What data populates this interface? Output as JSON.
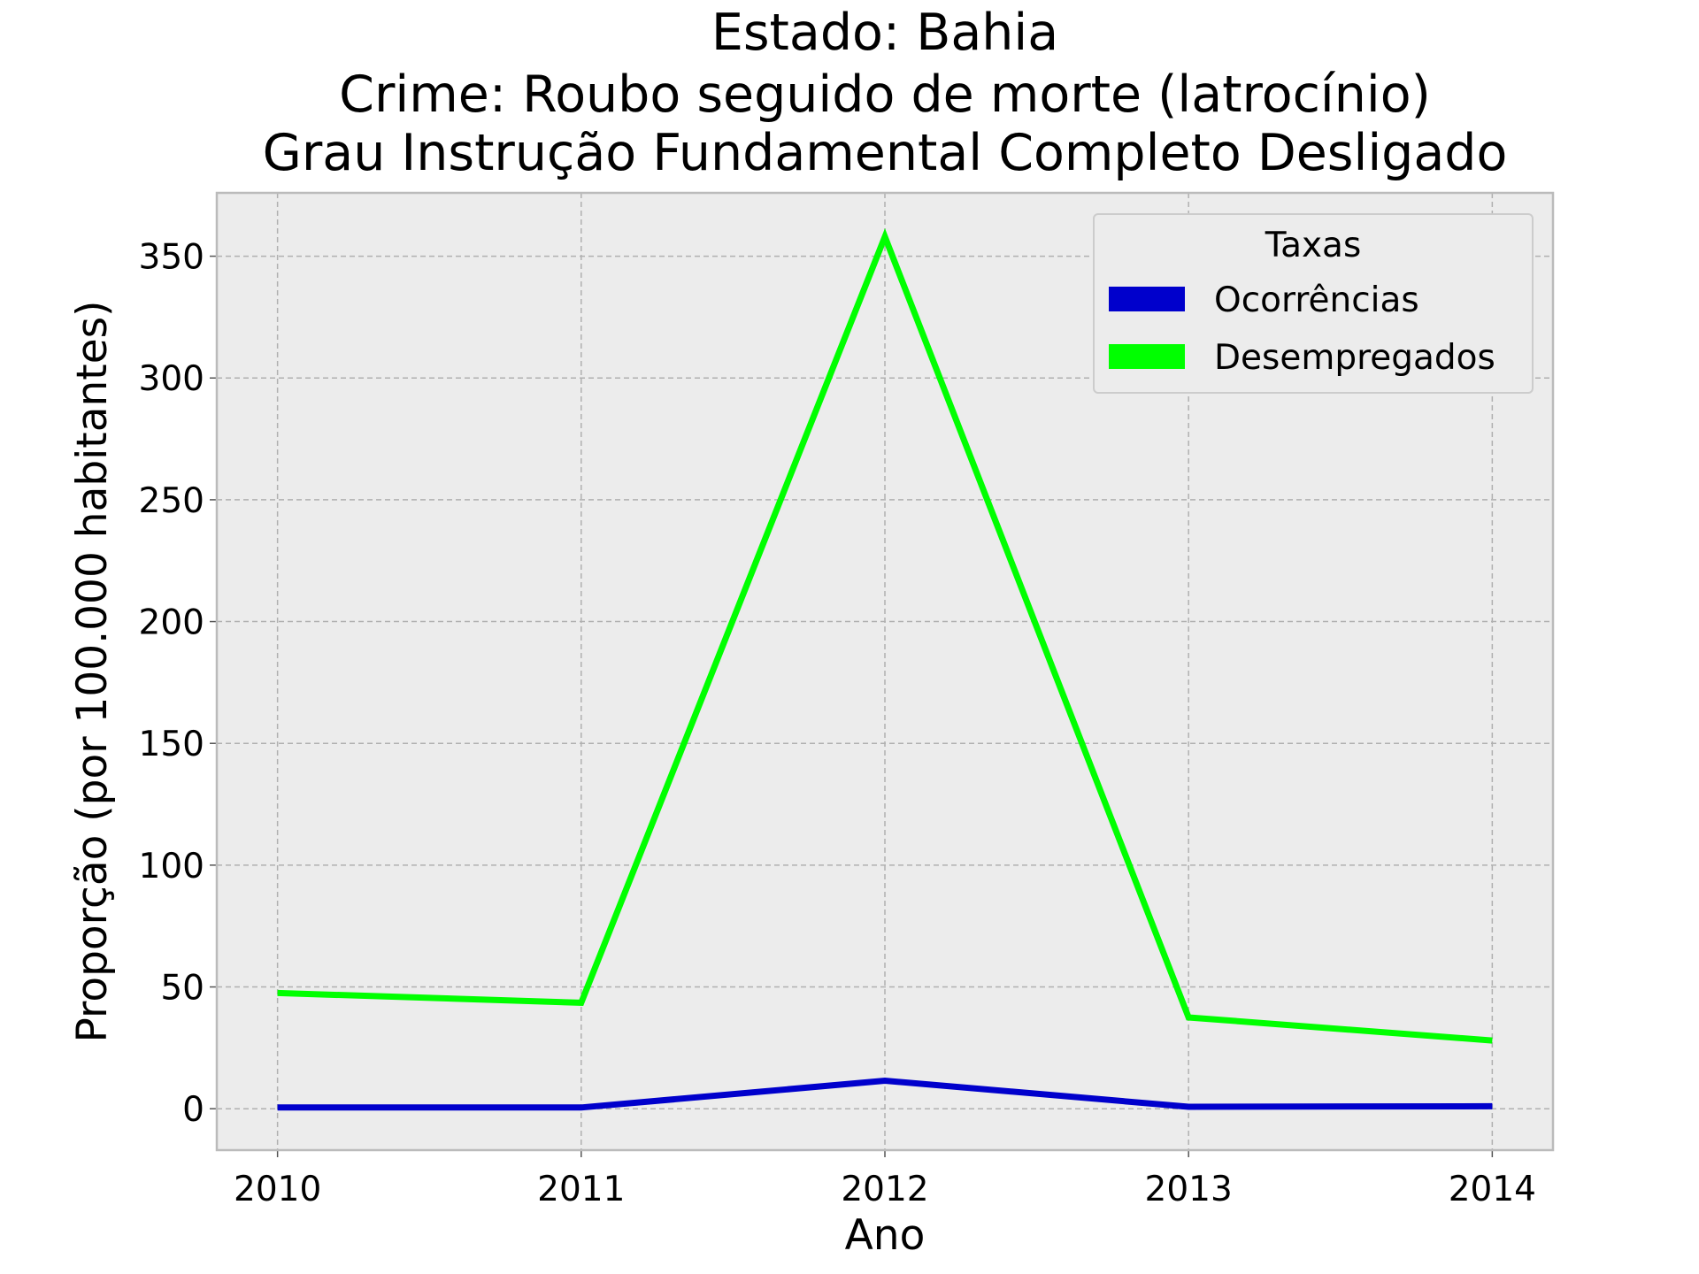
{
  "chart_data": {
    "type": "line",
    "title_lines": [
      "Estado: Bahia",
      "Crime: Roubo seguido de morte (latrocínio)",
      "Grau Instrução  Fundamental Completo   Desligado"
    ],
    "xlabel": "Ano",
    "ylabel": "Proporção (por 100.000 habitantes)",
    "x": [
      2010,
      2011,
      2012,
      2013,
      2014
    ],
    "x_tick_labels": [
      "2010",
      "2011",
      "2012",
      "2013",
      "2014"
    ],
    "xlim": [
      2009.8,
      2014.2
    ],
    "ylim": [
      -17,
      376
    ],
    "y_ticks": [
      0,
      50,
      100,
      150,
      200,
      250,
      300,
      350
    ],
    "y_tick_labels": [
      "0",
      "50",
      "100",
      "150",
      "200",
      "250",
      "300",
      "350"
    ],
    "grid": true,
    "legend": {
      "title": "Taxas",
      "placement": "top-right"
    },
    "series": [
      {
        "name": "Ocorrências",
        "color": "#0000cc",
        "values": [
          0.5,
          0.5,
          11.5,
          0.8,
          1.0
        ]
      },
      {
        "name": "Desempregados",
        "color": "#00ff00",
        "values": [
          47.5,
          43.5,
          358,
          37.5,
          28
        ]
      }
    ],
    "background": "#ececec",
    "frame_color": "#bbbbbb"
  }
}
